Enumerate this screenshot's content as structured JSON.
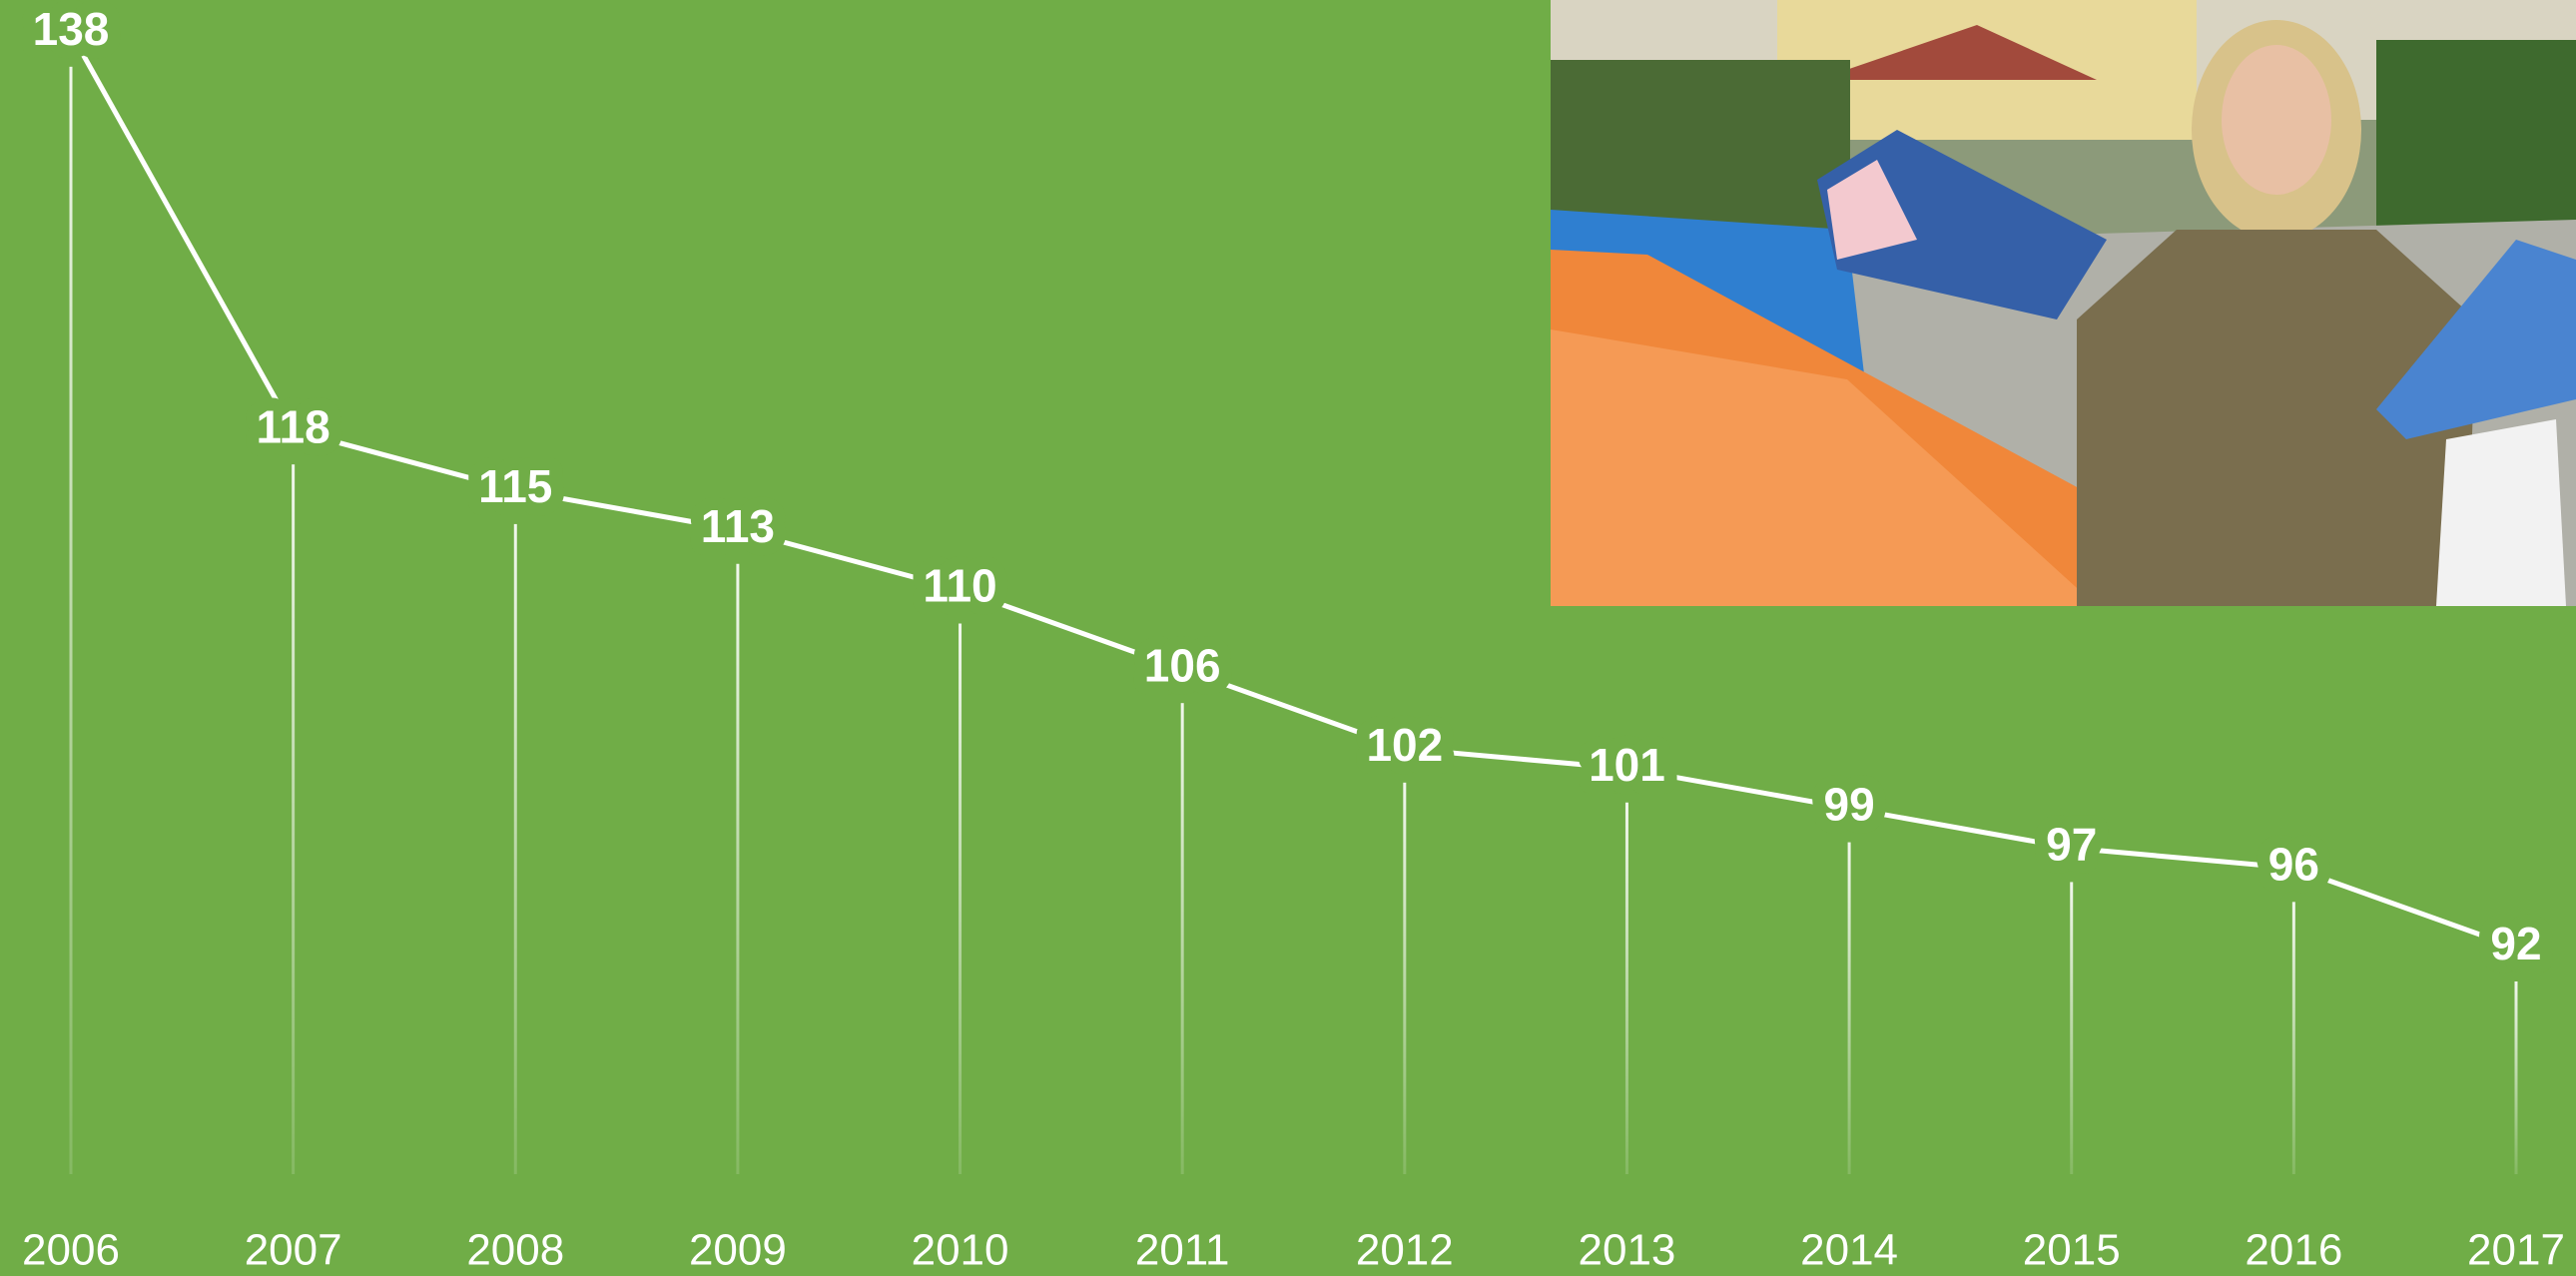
{
  "chart_data": {
    "type": "line",
    "categories": [
      "2006",
      "2007",
      "2008",
      "2009",
      "2010",
      "2011",
      "2012",
      "2013",
      "2014",
      "2015",
      "2016",
      "2017"
    ],
    "values": [
      138,
      118,
      115,
      113,
      110,
      106,
      102,
      101,
      99,
      97,
      96,
      92
    ],
    "color": "#ffffff",
    "ylim": [
      80,
      140
    ]
  }
}
